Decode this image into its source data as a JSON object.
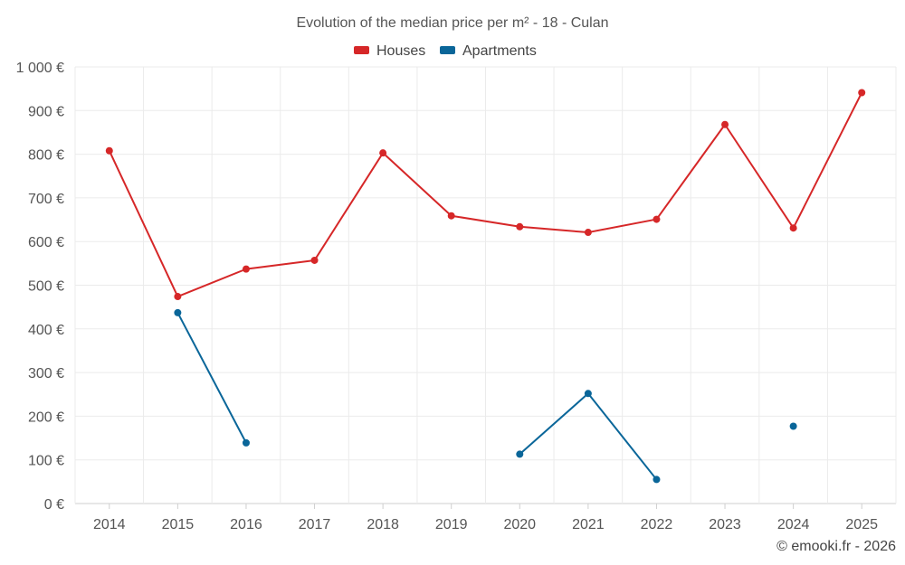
{
  "chart_data": {
    "type": "line",
    "title": "Evolution of the median price per m² - 18 - Culan",
    "categories": [
      "2014",
      "2015",
      "2016",
      "2017",
      "2018",
      "2019",
      "2020",
      "2021",
      "2022",
      "2023",
      "2024",
      "2025"
    ],
    "y_tick_labels": [
      "0 €",
      "100 €",
      "200 €",
      "300 €",
      "400 €",
      "500 €",
      "600 €",
      "700 €",
      "800 €",
      "900 €",
      "1 000 €"
    ],
    "ylim": [
      0,
      1000
    ],
    "y_ticks": [
      0,
      100,
      200,
      300,
      400,
      500,
      600,
      700,
      800,
      900,
      1000
    ],
    "grid": true,
    "legend_position": "top-center",
    "series": [
      {
        "name": "Houses",
        "color": "#d62728",
        "values": [
          808,
          474,
          537,
          557,
          803,
          659,
          634,
          621,
          651,
          868,
          631,
          941
        ]
      },
      {
        "name": "Apartments",
        "color": "#0a6699",
        "values": [
          null,
          437,
          139,
          null,
          null,
          null,
          113,
          252,
          55,
          null,
          177,
          null
        ]
      }
    ],
    "credit": "© emooki.fr - 2026"
  }
}
